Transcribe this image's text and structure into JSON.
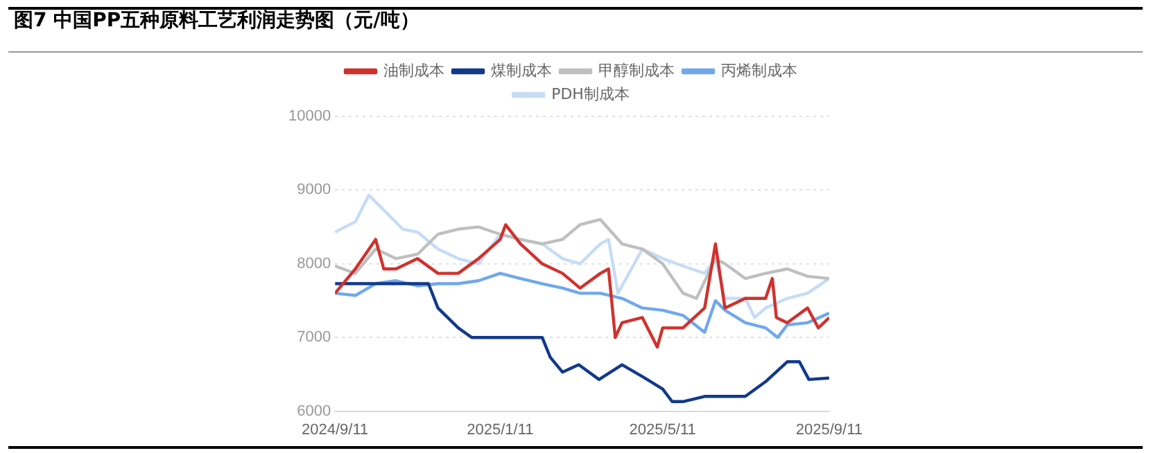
{
  "chart_data": {
    "type": "line",
    "title": "图7 中国PP五种原料工艺利润走势图（元/吨）",
    "xlim": [
      "2024-09-11",
      "2025-09-11"
    ],
    "xticks": [
      {
        "value": "2024-09-11",
        "label": "2024/9/11"
      },
      {
        "value": "2025-01-11",
        "label": "2025/1/11"
      },
      {
        "value": "2025-05-11",
        "label": "2025/5/11"
      },
      {
        "value": "2025-09-11",
        "label": "2025/9/11"
      }
    ],
    "ylim": [
      6000,
      10000
    ],
    "yticks": [
      6000,
      7000,
      8000,
      9000,
      10000
    ],
    "grid": "y",
    "legend": "top",
    "marker": "none",
    "line_style": "solid",
    "series": [
      {
        "name": "油制成本",
        "color": "#d0312d",
        "x": [
          "2024-09-11",
          "2024-09-26",
          "2024-10-11",
          "2024-10-17",
          "2024-10-26",
          "2024-11-11",
          "2024-11-26",
          "2024-12-11",
          "2024-12-26",
          "2025-01-11",
          "2025-01-15",
          "2025-01-26",
          "2025-02-11",
          "2025-02-26",
          "2025-03-11",
          "2025-03-26",
          "2025-04-01",
          "2025-04-06",
          "2025-04-11",
          "2025-04-26",
          "2025-05-07",
          "2025-05-11",
          "2025-05-26",
          "2025-06-11",
          "2025-06-19",
          "2025-06-26",
          "2025-07-11",
          "2025-07-26",
          "2025-07-31",
          "2025-08-03",
          "2025-08-11",
          "2025-08-26",
          "2025-09-03",
          "2025-09-11"
        ],
        "values": [
          7600,
          7930,
          8330,
          7930,
          7930,
          8070,
          7870,
          7870,
          8070,
          8330,
          8530,
          8270,
          8000,
          7870,
          7670,
          7870,
          7930,
          7000,
          7200,
          7270,
          6870,
          7130,
          7130,
          7400,
          8270,
          7400,
          7530,
          7530,
          7800,
          7270,
          7200,
          7400,
          7130,
          7270
        ]
      },
      {
        "name": "煤制成本",
        "color": "#12398a",
        "x": [
          "2024-09-11",
          "2024-11-19",
          "2024-11-26",
          "2024-12-11",
          "2024-12-21",
          "2025-01-11",
          "2025-02-11",
          "2025-02-17",
          "2025-02-26",
          "2025-03-10",
          "2025-03-25",
          "2025-04-11",
          "2025-04-26",
          "2025-05-11",
          "2025-05-18",
          "2025-05-26",
          "2025-06-11",
          "2025-06-26",
          "2025-07-11",
          "2025-07-26",
          "2025-08-11",
          "2025-08-20",
          "2025-08-27",
          "2025-09-11"
        ],
        "values": [
          7730,
          7730,
          7400,
          7130,
          7000,
          7000,
          7000,
          6730,
          6530,
          6630,
          6430,
          6630,
          6470,
          6300,
          6130,
          6130,
          6200,
          6200,
          6200,
          6400,
          6670,
          6670,
          6430,
          6450
        ]
      },
      {
        "name": "甲醇制成本",
        "color": "#bfbfbf",
        "x": [
          "2024-09-11",
          "2024-09-26",
          "2024-10-11",
          "2024-10-26",
          "2024-11-11",
          "2024-11-26",
          "2024-12-11",
          "2024-12-26",
          "2025-01-11",
          "2025-01-26",
          "2025-02-11",
          "2025-02-26",
          "2025-03-11",
          "2025-03-26",
          "2025-04-11",
          "2025-04-26",
          "2025-05-11",
          "2025-05-26",
          "2025-06-05",
          "2025-06-19",
          "2025-06-26",
          "2025-07-11",
          "2025-07-26",
          "2025-08-11",
          "2025-08-26",
          "2025-09-11"
        ],
        "values": [
          7970,
          7870,
          8200,
          8070,
          8130,
          8400,
          8470,
          8500,
          8400,
          8330,
          8270,
          8330,
          8530,
          8600,
          8270,
          8200,
          8000,
          7600,
          7530,
          8070,
          8000,
          7800,
          7870,
          7930,
          7830,
          7800
        ]
      },
      {
        "name": "丙烯制成本",
        "color": "#6fa8ec",
        "x": [
          "2024-09-11",
          "2024-09-26",
          "2024-10-11",
          "2024-10-26",
          "2024-11-11",
          "2024-11-26",
          "2024-12-11",
          "2024-12-26",
          "2025-01-11",
          "2025-01-26",
          "2025-02-11",
          "2025-02-26",
          "2025-03-11",
          "2025-03-26",
          "2025-04-11",
          "2025-04-26",
          "2025-05-11",
          "2025-05-26",
          "2025-06-11",
          "2025-06-19",
          "2025-06-26",
          "2025-07-11",
          "2025-07-26",
          "2025-08-04",
          "2025-08-11",
          "2025-08-26",
          "2025-09-11"
        ],
        "values": [
          7600,
          7570,
          7730,
          7770,
          7700,
          7730,
          7730,
          7770,
          7870,
          7800,
          7730,
          7670,
          7600,
          7600,
          7530,
          7400,
          7370,
          7300,
          7070,
          7500,
          7370,
          7200,
          7130,
          7000,
          7170,
          7200,
          7330
        ]
      },
      {
        "name": "PDH制成本",
        "color": "#c5dcf7",
        "x": [
          "2024-09-11",
          "2024-09-26",
          "2024-10-06",
          "2024-10-17",
          "2024-10-31",
          "2024-11-11",
          "2024-11-26",
          "2024-12-11",
          "2024-12-26",
          "2025-01-11",
          "2025-01-26",
          "2025-02-11",
          "2025-02-26",
          "2025-03-11",
          "2025-03-26",
          "2025-04-01",
          "2025-04-08",
          "2025-04-26",
          "2025-05-11",
          "2025-05-26",
          "2025-06-11",
          "2025-06-19",
          "2025-06-26",
          "2025-07-11",
          "2025-07-18",
          "2025-07-26",
          "2025-08-11",
          "2025-08-26",
          "2025-09-11"
        ],
        "values": [
          8430,
          8570,
          8930,
          8730,
          8470,
          8430,
          8200,
          8070,
          8000,
          8400,
          8330,
          8270,
          8070,
          8000,
          8270,
          8330,
          7600,
          8200,
          8070,
          7970,
          7870,
          8070,
          7530,
          7530,
          7270,
          7400,
          7530,
          7600,
          7800
        ]
      }
    ]
  }
}
